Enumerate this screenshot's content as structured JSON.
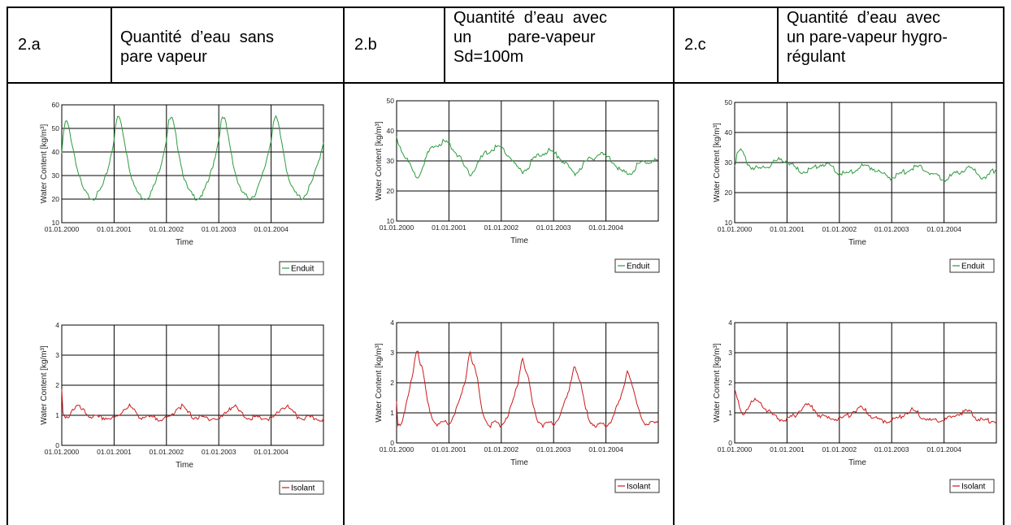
{
  "colors": {
    "enduit": "#2e9a3e",
    "isolant": "#cc1a1a",
    "grid": "#000000"
  },
  "header": [
    {
      "code": "2.a",
      "lines": [
        "Quantité  d’eau  sans",
        "pare vapeur"
      ]
    },
    {
      "code": "2.b",
      "lines": [
        "Quantité  d’eau  avec",
        "un        pare-vapeur",
        "Sd=100m"
      ]
    },
    {
      "code": "2.c",
      "lines": [
        "Quantité  d’eau  avec",
        "un pare-vapeur hygro-",
        "régulant"
      ]
    }
  ],
  "chart_data": [
    {
      "type": "line",
      "panel": "2.a",
      "ylabel": "Water Content [kg/m³]",
      "xlabel": "Time",
      "ylim": [
        10,
        60
      ],
      "yticks": [
        10,
        20,
        30,
        40,
        50,
        60
      ],
      "x_tick_labels": [
        "01.01.2000",
        "01.01.2001",
        "01.01.2002",
        "01.01.2003",
        "01.01.2004"
      ],
      "x_range_years": [
        2000,
        2005
      ],
      "grid": true,
      "legend_position": "bottom-right",
      "series": [
        {
          "name": "Enduit",
          "color": "#2e9a3e",
          "x": [
            2000.0,
            2000.04,
            2000.08,
            2000.12,
            2000.2,
            2000.3,
            2000.4,
            2000.5,
            2000.6,
            2000.7,
            2000.8,
            2000.9,
            2001.0,
            2001.04,
            2001.08,
            2001.12,
            2001.2,
            2001.3,
            2001.4,
            2001.5,
            2001.6,
            2001.7,
            2001.8,
            2001.9,
            2002.0,
            2002.04,
            2002.08,
            2002.12,
            2002.2,
            2002.3,
            2002.4,
            2002.5,
            2002.6,
            2002.7,
            2002.8,
            2002.9,
            2003.0,
            2003.04,
            2003.08,
            2003.12,
            2003.2,
            2003.3,
            2003.4,
            2003.5,
            2003.6,
            2003.7,
            2003.8,
            2003.9,
            2004.0,
            2004.04,
            2004.08,
            2004.12,
            2004.2,
            2004.3,
            2004.4,
            2004.5,
            2004.6,
            2004.7,
            2004.8,
            2004.9,
            2005.0
          ],
          "y": [
            40,
            50,
            54,
            52,
            44,
            33,
            25,
            22,
            21,
            23,
            27,
            35,
            46,
            53,
            56,
            54,
            45,
            33,
            25,
            22,
            21,
            23,
            28,
            36,
            46,
            53,
            55,
            54,
            45,
            33,
            25,
            22,
            21,
            23,
            28,
            36,
            46,
            53,
            55,
            54,
            45,
            33,
            25,
            22,
            21,
            23,
            28,
            36,
            46,
            53,
            55,
            54,
            45,
            33,
            25,
            22,
            21,
            24,
            29,
            36,
            45
          ]
        }
      ]
    },
    {
      "type": "line",
      "panel": "2.a",
      "ylabel": "Water Content [kg/m³]",
      "xlabel": "Time",
      "ylim": [
        0,
        4
      ],
      "yticks": [
        0,
        1,
        2,
        3,
        4
      ],
      "x_tick_labels": [
        "01.01.2000",
        "01.01.2001",
        "01.01.2002",
        "01.01.2003",
        "01.01.2004"
      ],
      "x_range_years": [
        2000,
        2005
      ],
      "grid": true,
      "legend_position": "bottom-right",
      "series": [
        {
          "name": "Isolant",
          "color": "#cc1a1a",
          "x": [
            2000.0,
            2000.02,
            2000.06,
            2000.12,
            2000.2,
            2000.3,
            2000.4,
            2000.5,
            2000.6,
            2000.7,
            2000.8,
            2000.9,
            2001.0,
            2001.1,
            2001.2,
            2001.3,
            2001.4,
            2001.5,
            2001.6,
            2001.7,
            2001.8,
            2001.9,
            2002.0,
            2002.1,
            2002.2,
            2002.3,
            2002.4,
            2002.5,
            2002.6,
            2002.7,
            2002.8,
            2002.9,
            2003.0,
            2003.1,
            2003.2,
            2003.3,
            2003.4,
            2003.5,
            2003.6,
            2003.7,
            2003.8,
            2003.9,
            2004.0,
            2004.1,
            2004.2,
            2004.3,
            2004.4,
            2004.5,
            2004.6,
            2004.7,
            2004.8,
            2004.9,
            2005.0
          ],
          "y": [
            1.9,
            1.1,
            0.9,
            1.0,
            1.25,
            1.35,
            1.2,
            1.05,
            1.0,
            0.95,
            0.97,
            0.95,
            0.92,
            1.05,
            1.3,
            1.35,
            1.15,
            1.0,
            0.98,
            0.96,
            0.95,
            0.95,
            0.9,
            1.05,
            1.3,
            1.35,
            1.15,
            1.0,
            0.98,
            0.95,
            0.96,
            0.95,
            0.9,
            1.05,
            1.3,
            1.35,
            1.15,
            1.0,
            0.98,
            0.95,
            0.96,
            0.95,
            0.9,
            1.05,
            1.3,
            1.35,
            1.15,
            1.0,
            0.97,
            0.95,
            0.95,
            0.94,
            0.93
          ]
        }
      ]
    },
    {
      "type": "line",
      "panel": "2.b",
      "ylabel": "Water Content [kg/m³]",
      "xlabel": "Time",
      "ylim": [
        10,
        50
      ],
      "yticks": [
        10,
        20,
        30,
        40,
        50
      ],
      "x_tick_labels": [
        "01.01.2000",
        "01.01.2001",
        "01.01.2002",
        "01.01.2003",
        "01.01.2004"
      ],
      "x_range_years": [
        2000,
        2005
      ],
      "grid": true,
      "legend_position": "bottom-right",
      "series": [
        {
          "name": "Enduit",
          "color": "#2e9a3e",
          "x": [
            2000.0,
            2000.1,
            2000.2,
            2000.3,
            2000.4,
            2000.5,
            2000.6,
            2000.7,
            2000.8,
            2000.9,
            2001.0,
            2001.1,
            2001.2,
            2001.3,
            2001.4,
            2001.5,
            2001.6,
            2001.7,
            2001.8,
            2001.9,
            2002.0,
            2002.1,
            2002.2,
            2002.3,
            2002.4,
            2002.5,
            2002.6,
            2002.7,
            2002.8,
            2002.9,
            2003.0,
            2003.1,
            2003.2,
            2003.3,
            2003.4,
            2003.5,
            2003.6,
            2003.7,
            2003.8,
            2003.9,
            2004.0,
            2004.1,
            2004.2,
            2004.3,
            2004.4,
            2004.5,
            2004.6,
            2004.7,
            2004.8,
            2004.9,
            2005.0
          ],
          "y": [
            38,
            34,
            31,
            27,
            25,
            29,
            33,
            35,
            36,
            37,
            36,
            34,
            32,
            28,
            26,
            28,
            31,
            33,
            34,
            35,
            35,
            33,
            31,
            28,
            27,
            28,
            31,
            32,
            33,
            34,
            33,
            32,
            30,
            28,
            26,
            28,
            30,
            31,
            32,
            33,
            32,
            31,
            29,
            27,
            26,
            27,
            29,
            30,
            30,
            31,
            30
          ]
        }
      ]
    },
    {
      "type": "line",
      "panel": "2.b",
      "ylabel": "Water Content [kg/m³]",
      "xlabel": "Time",
      "ylim": [
        0,
        4
      ],
      "yticks": [
        0,
        1,
        2,
        3,
        4
      ],
      "x_tick_labels": [
        "01.01.2000",
        "01.01.2001",
        "01.01.2002",
        "01.01.2003",
        "01.01.2004"
      ],
      "x_range_years": [
        2000,
        2005
      ],
      "grid": true,
      "legend_position": "bottom-right",
      "series": [
        {
          "name": "Isolant",
          "color": "#cc1a1a",
          "x": [
            2000.0,
            2000.02,
            2000.08,
            2000.15,
            2000.2,
            2000.25,
            2000.3,
            2000.35,
            2000.4,
            2000.45,
            2000.5,
            2000.55,
            2000.6,
            2000.7,
            2000.8,
            2000.9,
            2001.0,
            2001.1,
            2001.2,
            2001.3,
            2001.35,
            2001.4,
            2001.45,
            2001.5,
            2001.55,
            2001.6,
            2001.7,
            2001.8,
            2001.9,
            2002.0,
            2002.1,
            2002.2,
            2002.3,
            2002.35,
            2002.4,
            2002.45,
            2002.5,
            2002.55,
            2002.6,
            2002.7,
            2002.8,
            2002.9,
            2003.0,
            2003.1,
            2003.2,
            2003.3,
            2003.35,
            2003.4,
            2003.45,
            2003.5,
            2003.55,
            2003.6,
            2003.7,
            2003.8,
            2003.9,
            2004.0,
            2004.1,
            2004.2,
            2004.3,
            2004.35,
            2004.4,
            2004.45,
            2004.5,
            2004.55,
            2004.6,
            2004.7,
            2004.8,
            2004.9,
            2005.0
          ],
          "y": [
            1.5,
            0.7,
            0.7,
            1.0,
            1.4,
            1.8,
            2.3,
            2.9,
            3.2,
            2.7,
            2.4,
            1.9,
            1.3,
            0.8,
            0.65,
            0.7,
            0.7,
            1.0,
            1.4,
            2.0,
            2.6,
            3.2,
            2.7,
            2.5,
            2.1,
            1.4,
            0.8,
            0.65,
            0.7,
            0.65,
            0.9,
            1.3,
            1.9,
            2.4,
            3.0,
            2.6,
            2.3,
            1.9,
            1.3,
            0.8,
            0.65,
            0.7,
            0.65,
            0.9,
            1.3,
            1.8,
            2.3,
            2.7,
            2.4,
            2.1,
            1.7,
            1.2,
            0.8,
            0.6,
            0.65,
            0.6,
            0.8,
            1.2,
            1.6,
            2.0,
            2.5,
            2.3,
            2.0,
            1.6,
            1.2,
            0.8,
            0.65,
            0.7,
            0.7
          ]
        }
      ]
    },
    {
      "type": "line",
      "panel": "2.c",
      "ylabel": "Water Content [kg/m³]",
      "xlabel": "Time",
      "ylim": [
        10,
        50
      ],
      "yticks": [
        10,
        20,
        30,
        40,
        50
      ],
      "x_tick_labels": [
        "01.01.2000",
        "01.01.2001",
        "01.01.2002",
        "01.01.2003",
        "01.01.2004"
      ],
      "x_range_years": [
        2000,
        2005
      ],
      "grid": true,
      "legend_position": "bottom-right",
      "series": [
        {
          "name": "Enduit",
          "color": "#2e9a3e",
          "x": [
            2000.0,
            2000.05,
            2000.1,
            2000.15,
            2000.2,
            2000.3,
            2000.4,
            2000.5,
            2000.6,
            2000.7,
            2000.8,
            2000.9,
            2001.0,
            2001.1,
            2001.2,
            2001.3,
            2001.4,
            2001.5,
            2001.6,
            2001.7,
            2001.8,
            2001.9,
            2002.0,
            2002.1,
            2002.2,
            2002.3,
            2002.4,
            2002.5,
            2002.6,
            2002.7,
            2002.8,
            2002.9,
            2003.0,
            2003.1,
            2003.2,
            2003.3,
            2003.4,
            2003.5,
            2003.6,
            2003.7,
            2003.8,
            2003.9,
            2004.0,
            2004.1,
            2004.2,
            2004.3,
            2004.4,
            2004.5,
            2004.6,
            2004.7,
            2004.8,
            2004.9,
            2005.0
          ],
          "y": [
            30,
            33,
            34.5,
            34,
            32,
            29,
            28.5,
            28.5,
            29,
            30,
            31,
            31.5,
            31,
            29.5,
            28,
            27.5,
            28,
            28.5,
            29.5,
            30,
            29.5,
            28.5,
            27,
            26.5,
            27,
            28,
            29,
            29.5,
            29,
            28,
            27,
            26,
            25.5,
            26,
            27,
            28,
            28.5,
            29,
            28.5,
            27.5,
            26.5,
            25.5,
            25,
            25.5,
            26.5,
            27.5,
            28,
            28.5,
            27.5,
            26,
            25,
            27,
            28.5
          ]
        }
      ]
    },
    {
      "type": "line",
      "panel": "2.c",
      "ylabel": "Water Content [kg/m³]",
      "xlabel": "Time",
      "ylim": [
        0,
        4
      ],
      "yticks": [
        0,
        1,
        2,
        3,
        4
      ],
      "x_tick_labels": [
        "01.01.2000",
        "01.01.2001",
        "01.01.2002",
        "01.01.2003",
        "01.01.2004"
      ],
      "x_range_years": [
        2000,
        2005
      ],
      "grid": true,
      "legend_position": "bottom-right",
      "series": [
        {
          "name": "Isolant",
          "color": "#cc1a1a",
          "x": [
            2000.0,
            2000.05,
            2000.1,
            2000.15,
            2000.2,
            2000.3,
            2000.4,
            2000.5,
            2000.6,
            2000.7,
            2000.8,
            2000.9,
            2001.0,
            2001.1,
            2001.2,
            2001.3,
            2001.4,
            2001.5,
            2001.6,
            2001.7,
            2001.8,
            2001.9,
            2002.0,
            2002.1,
            2002.2,
            2002.3,
            2002.4,
            2002.5,
            2002.6,
            2002.7,
            2002.8,
            2002.9,
            2003.0,
            2003.1,
            2003.2,
            2003.3,
            2003.4,
            2003.5,
            2003.6,
            2003.7,
            2003.8,
            2003.9,
            2004.0,
            2004.1,
            2004.2,
            2004.3,
            2004.4,
            2004.5,
            2004.6,
            2004.7,
            2004.8,
            2004.9,
            2005.0
          ],
          "y": [
            1.8,
            1.5,
            1.1,
            1.0,
            1.1,
            1.4,
            1.45,
            1.4,
            1.2,
            1.0,
            0.9,
            0.85,
            0.85,
            0.9,
            1.05,
            1.25,
            1.3,
            1.2,
            1.0,
            0.9,
            0.85,
            0.85,
            0.85,
            0.9,
            1.0,
            1.15,
            1.2,
            1.1,
            0.95,
            0.85,
            0.8,
            0.8,
            0.8,
            0.85,
            0.95,
            1.1,
            1.15,
            1.05,
            0.9,
            0.8,
            0.8,
            0.8,
            0.8,
            0.85,
            0.95,
            1.05,
            1.1,
            1.05,
            0.9,
            0.8,
            0.75,
            0.8,
            0.8
          ]
        }
      ]
    }
  ]
}
